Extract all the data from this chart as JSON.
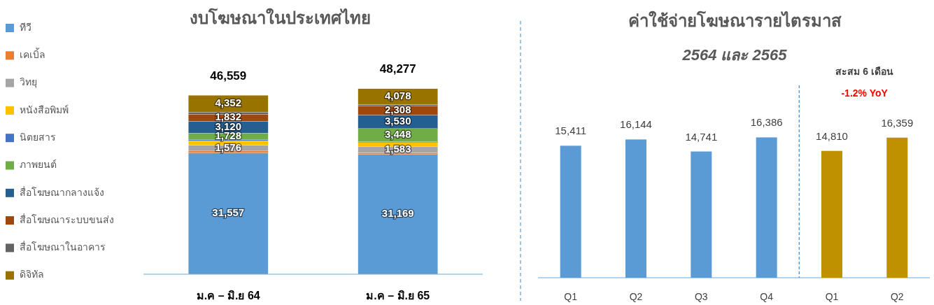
{
  "chart_data": [
    {
      "type": "bar",
      "stacked": true,
      "title": "งบโฆษณาในประเทศไทย",
      "categories": [
        "ม.ค – มิ.ย 64",
        "ม.ค – มิ.ย 65"
      ],
      "legend": "left",
      "totals": [
        "46,559",
        "48,277"
      ],
      "series": [
        {
          "name": "ทีวี",
          "color": "#5b9bd5",
          "values": [
            31557,
            31169
          ],
          "value_labels": [
            "31,557",
            "31,169"
          ]
        },
        {
          "name": "เคเบิ้ล",
          "color": "#ed7d31",
          "values": [
            500,
            400
          ],
          "value_labels": [
            null,
            null
          ]
        },
        {
          "name": "วิทยุ",
          "color": "#a5a5a5",
          "values": [
            1576,
            1583
          ],
          "value_labels": [
            "1,576",
            "1,583"
          ]
        },
        {
          "name": "หนังสือพิมพ์",
          "color": "#ffc000",
          "values": [
            1100,
            1100
          ],
          "value_labels": [
            null,
            null
          ]
        },
        {
          "name": "นิตยสาร",
          "color": "#4472c4",
          "values": [
            250,
            200
          ],
          "value_labels": [
            null,
            null
          ]
        },
        {
          "name": "ภาพยนต์",
          "color": "#70ad47",
          "values": [
            1728,
            3448
          ],
          "value_labels": [
            "1,728",
            "3,448"
          ]
        },
        {
          "name": "สื่อโฆษณากลางแจ้ง",
          "color": "#255e91",
          "values": [
            3120,
            3530
          ],
          "value_labels": [
            "3,120",
            "3,530"
          ]
        },
        {
          "name": "สื่อโฆษณาระบบขนส่ง",
          "color": "#9e480e",
          "values": [
            1832,
            2308
          ],
          "value_labels": [
            "1,832",
            "2,308"
          ]
        },
        {
          "name": "สื่อโฆษณาในอาคาร",
          "color": "#636363",
          "values": [
            544,
            461
          ],
          "value_labels": [
            null,
            null
          ]
        },
        {
          "name": "ดิจิทัล",
          "color": "#997300",
          "values": [
            4352,
            4078
          ],
          "value_labels": [
            "4,352",
            "4,078"
          ]
        }
      ]
    },
    {
      "type": "bar",
      "title": "ค่าใช้จ่ายโฆษณารายไตรมาส",
      "subtitle": "2564 และ 2565",
      "categories": [
        "Q1",
        "Q2",
        "Q3",
        "Q4",
        "Q1",
        "Q2"
      ],
      "values": [
        15411,
        16144,
        14741,
        16386,
        14810,
        16359
      ],
      "colors": [
        "#5b9bd5",
        "#5b9bd5",
        "#5b9bd5",
        "#5b9bd5",
        "#bf9000",
        "#bf9000"
      ],
      "value_labels": [
        "15,411",
        "16,144",
        "14,741",
        "16,386",
        "14,810",
        "16,359"
      ],
      "annotations": [
        "สะสม 6 เดือน",
        "-1.2% YoY"
      ]
    }
  ]
}
